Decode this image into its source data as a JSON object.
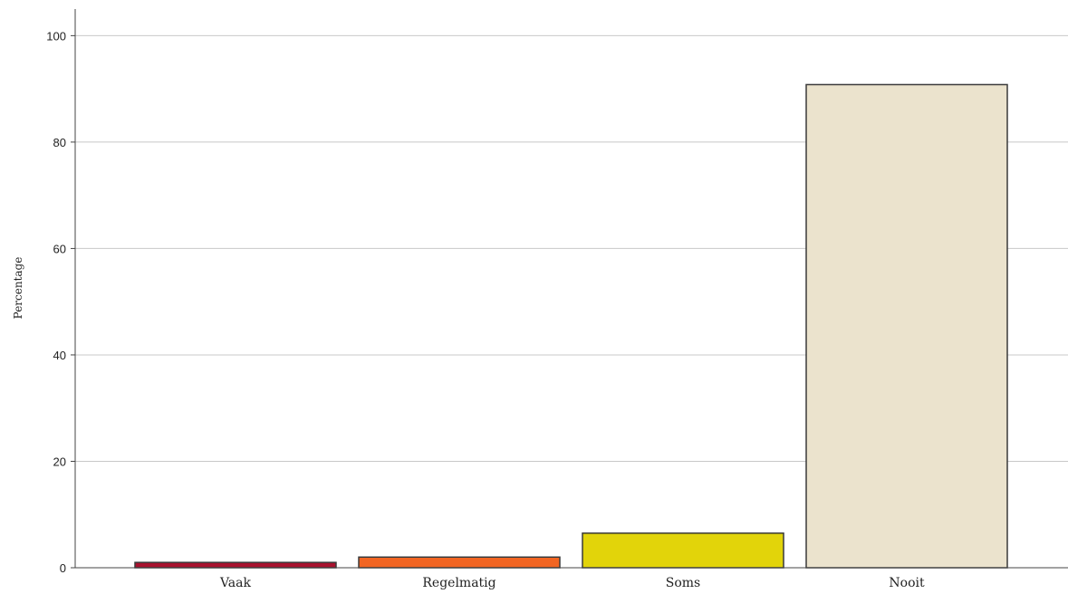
{
  "chart_data": {
    "type": "bar",
    "categories": [
      "Vaak",
      "Regelmatig",
      "Soms",
      "Nooit"
    ],
    "values": [
      1.0,
      2.0,
      6.5,
      90.8
    ],
    "colors": [
      "#a8122e",
      "#f26522",
      "#e2d40a",
      "#ebe3cd"
    ],
    "ylabel": "Percentage",
    "ylim": [
      0,
      105
    ],
    "yticks": [
      0,
      20,
      40,
      60,
      80,
      100
    ],
    "grid": true
  }
}
